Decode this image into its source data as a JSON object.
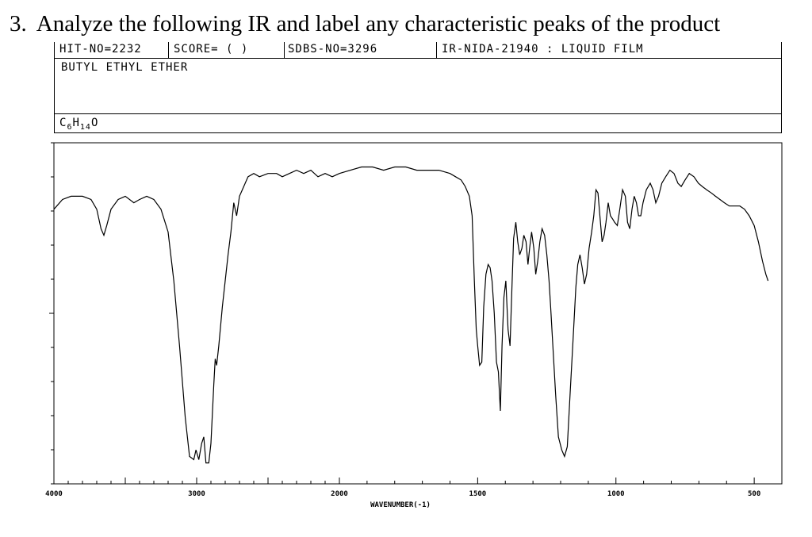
{
  "question": {
    "number": "3.",
    "text": "Analyze the following IR and label any characteristic peaks of the product"
  },
  "header": {
    "hit_no": "HIT-NO=2232",
    "score": "SCORE=  (  )",
    "sdbs_no": "SDBS-NO=3296",
    "ir_nida": "IR-NIDA-21940 : LIQUID FILM",
    "compound_name": "BUTYL ETHYL ETHER",
    "formula_c": "C",
    "formula_c_sub": "6",
    "formula_h": "H",
    "formula_h_sub": "14",
    "formula_o": "O"
  },
  "chart_data": {
    "type": "line",
    "title": "",
    "xlabel": "WAVENUMBER(-1)",
    "ylabel": "",
    "xlim": [
      4000,
      400
    ],
    "ylim": [
      0,
      100
    ],
    "grid": false,
    "x_tick_labels": [
      "4000",
      "3000",
      "2000",
      "1500",
      "1000",
      "500"
    ],
    "x_tick_values": [
      4000,
      3000,
      2000,
      1500,
      1000,
      500
    ],
    "series": [
      {
        "points": [
          [
            4000,
            82
          ],
          [
            3940,
            85
          ],
          [
            3880,
            86
          ],
          [
            3800,
            86
          ],
          [
            3740,
            85
          ],
          [
            3700,
            82
          ],
          [
            3670,
            76
          ],
          [
            3650,
            74
          ],
          [
            3630,
            77
          ],
          [
            3600,
            82
          ],
          [
            3550,
            85
          ],
          [
            3500,
            86
          ],
          [
            3440,
            84
          ],
          [
            3400,
            85
          ],
          [
            3350,
            86
          ],
          [
            3300,
            85
          ],
          [
            3250,
            82
          ],
          [
            3200,
            75
          ],
          [
            3160,
            60
          ],
          [
            3120,
            40
          ],
          [
            3080,
            18
          ],
          [
            3050,
            6
          ],
          [
            3020,
            5
          ],
          [
            3005,
            8
          ],
          [
            2985,
            5
          ],
          [
            2965,
            10
          ],
          [
            2950,
            12
          ],
          [
            2935,
            4
          ],
          [
            2915,
            4
          ],
          [
            2900,
            10
          ],
          [
            2880,
            28
          ],
          [
            2870,
            36
          ],
          [
            2860,
            34
          ],
          [
            2845,
            40
          ],
          [
            2820,
            52
          ],
          [
            2800,
            60
          ],
          [
            2780,
            68
          ],
          [
            2760,
            75
          ],
          [
            2740,
            84
          ],
          [
            2720,
            80
          ],
          [
            2700,
            86
          ],
          [
            2680,
            88
          ],
          [
            2640,
            92
          ],
          [
            2600,
            93
          ],
          [
            2560,
            92
          ],
          [
            2500,
            93
          ],
          [
            2440,
            93
          ],
          [
            2400,
            92
          ],
          [
            2350,
            93
          ],
          [
            2300,
            94
          ],
          [
            2250,
            93
          ],
          [
            2200,
            94
          ],
          [
            2150,
            92
          ],
          [
            2100,
            93
          ],
          [
            2050,
            92
          ],
          [
            2000,
            93
          ],
          [
            1960,
            94
          ],
          [
            1920,
            95
          ],
          [
            1880,
            95
          ],
          [
            1840,
            94
          ],
          [
            1800,
            95
          ],
          [
            1760,
            95
          ],
          [
            1720,
            94
          ],
          [
            1680,
            94
          ],
          [
            1640,
            94
          ],
          [
            1600,
            93
          ],
          [
            1580,
            92
          ],
          [
            1560,
            91
          ],
          [
            1545,
            89
          ],
          [
            1530,
            86
          ],
          [
            1520,
            80
          ],
          [
            1512,
            60
          ],
          [
            1505,
            45
          ],
          [
            1500,
            40
          ],
          [
            1493,
            34
          ],
          [
            1485,
            35
          ],
          [
            1478,
            52
          ],
          [
            1470,
            62
          ],
          [
            1462,
            65
          ],
          [
            1455,
            64
          ],
          [
            1448,
            60
          ],
          [
            1440,
            50
          ],
          [
            1432,
            35
          ],
          [
            1425,
            32
          ],
          [
            1418,
            20
          ],
          [
            1412,
            40
          ],
          [
            1405,
            55
          ],
          [
            1398,
            60
          ],
          [
            1390,
            45
          ],
          [
            1383,
            40
          ],
          [
            1376,
            58
          ],
          [
            1370,
            73
          ],
          [
            1362,
            78
          ],
          [
            1355,
            72
          ],
          [
            1348,
            68
          ],
          [
            1340,
            70
          ],
          [
            1333,
            74
          ],
          [
            1325,
            72
          ],
          [
            1318,
            65
          ],
          [
            1312,
            70
          ],
          [
            1305,
            75
          ],
          [
            1297,
            70
          ],
          [
            1290,
            62
          ],
          [
            1283,
            66
          ],
          [
            1275,
            72
          ],
          [
            1267,
            76
          ],
          [
            1258,
            74
          ],
          [
            1250,
            68
          ],
          [
            1242,
            60
          ],
          [
            1236,
            52
          ],
          [
            1228,
            40
          ],
          [
            1218,
            25
          ],
          [
            1208,
            12
          ],
          [
            1196,
            8
          ],
          [
            1186,
            6
          ],
          [
            1176,
            9
          ],
          [
            1166,
            25
          ],
          [
            1155,
            42
          ],
          [
            1145,
            58
          ],
          [
            1138,
            65
          ],
          [
            1130,
            68
          ],
          [
            1122,
            64
          ],
          [
            1114,
            59
          ],
          [
            1106,
            62
          ],
          [
            1097,
            70
          ],
          [
            1088,
            75
          ],
          [
            1080,
            80
          ],
          [
            1072,
            88
          ],
          [
            1065,
            87
          ],
          [
            1058,
            80
          ],
          [
            1050,
            72
          ],
          [
            1043,
            74
          ],
          [
            1036,
            78
          ],
          [
            1028,
            84
          ],
          [
            1020,
            80
          ],
          [
            1012,
            79
          ],
          [
            1005,
            78
          ],
          [
            995,
            77
          ],
          [
            986,
            82
          ],
          [
            976,
            88
          ],
          [
            966,
            86
          ],
          [
            958,
            78
          ],
          [
            950,
            76
          ],
          [
            942,
            82
          ],
          [
            934,
            86
          ],
          [
            926,
            84
          ],
          [
            918,
            80
          ],
          [
            910,
            80
          ],
          [
            902,
            84
          ],
          [
            890,
            88
          ],
          [
            876,
            90
          ],
          [
            866,
            88
          ],
          [
            856,
            84
          ],
          [
            846,
            86
          ],
          [
            834,
            90
          ],
          [
            820,
            92
          ],
          [
            805,
            94
          ],
          [
            790,
            93
          ],
          [
            776,
            90
          ],
          [
            764,
            89
          ],
          [
            750,
            91
          ],
          [
            735,
            93
          ],
          [
            718,
            92
          ],
          [
            702,
            90
          ],
          [
            688,
            89
          ],
          [
            672,
            88
          ],
          [
            655,
            87
          ],
          [
            640,
            86
          ],
          [
            624,
            85
          ],
          [
            608,
            84
          ],
          [
            590,
            83
          ],
          [
            570,
            83
          ],
          [
            552,
            83
          ],
          [
            535,
            82
          ],
          [
            518,
            80
          ],
          [
            500,
            77
          ],
          [
            485,
            72
          ],
          [
            470,
            66
          ],
          [
            458,
            62
          ],
          [
            450,
            60
          ]
        ]
      }
    ]
  }
}
